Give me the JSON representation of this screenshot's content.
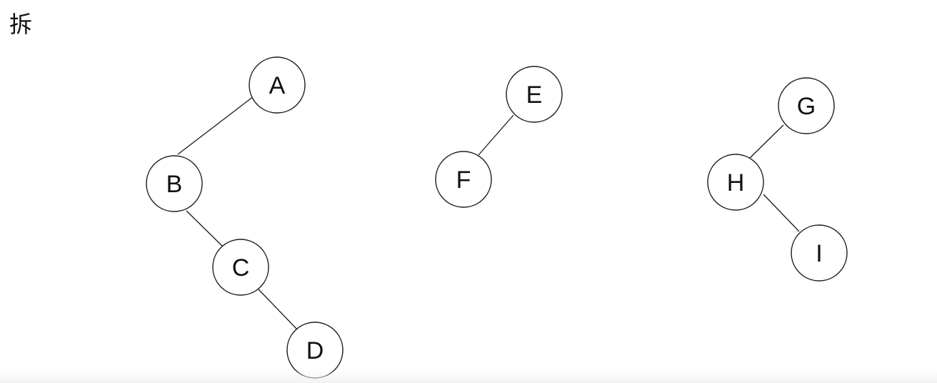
{
  "heading": "拆",
  "colors": {
    "stroke": "#1a1a1a",
    "node_fill": "#ffffff",
    "text": "#111111",
    "background": "#ffffff"
  },
  "nodes": {
    "A": "A",
    "B": "B",
    "C": "C",
    "D": "D",
    "E": "E",
    "F": "F",
    "G": "G",
    "H": "H",
    "I": "I"
  },
  "edges": [
    [
      "A",
      "B"
    ],
    [
      "B",
      "C"
    ],
    [
      "C",
      "D"
    ],
    [
      "E",
      "F"
    ],
    [
      "G",
      "H"
    ],
    [
      "H",
      "I"
    ]
  ]
}
